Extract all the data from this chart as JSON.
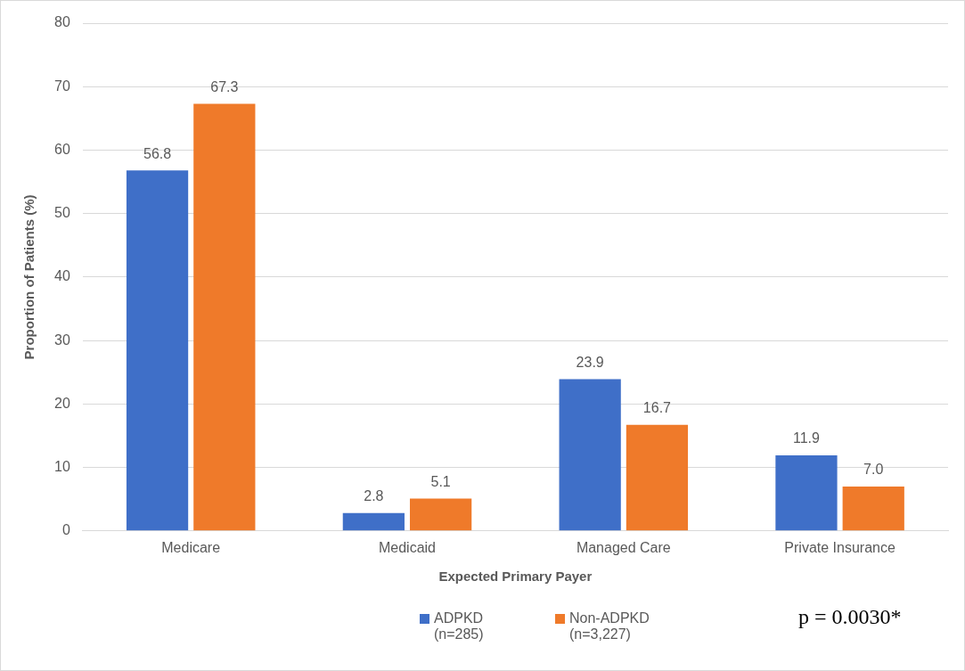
{
  "chart_data": {
    "type": "bar",
    "xlabel": "Expected Primary Payer",
    "ylabel": "Proportion of Patients (%)",
    "categories": [
      "Medicare",
      "Medicaid",
      "Managed Care",
      "Private Insurance"
    ],
    "series": [
      {
        "name": "ADPKD (n=285)",
        "color": "#3f6fc8",
        "values": [
          56.8,
          2.8,
          23.9,
          11.9
        ],
        "value_labels": [
          "56.8",
          "2.8",
          "23.9",
          "11.9"
        ]
      },
      {
        "name": "Non-ADPKD (n=3,227)",
        "color": "#ef7a2a",
        "values": [
          67.3,
          5.1,
          16.7,
          7.0
        ],
        "value_labels": [
          "67.3",
          "5.1",
          "16.7",
          "7.0"
        ]
      }
    ],
    "ylim": [
      0,
      80
    ],
    "yticks": [
      0,
      10,
      20,
      30,
      40,
      50,
      60,
      70,
      80
    ],
    "grid": "y",
    "legend": "bottom",
    "annotations": [
      "p = 0.0030*"
    ]
  }
}
